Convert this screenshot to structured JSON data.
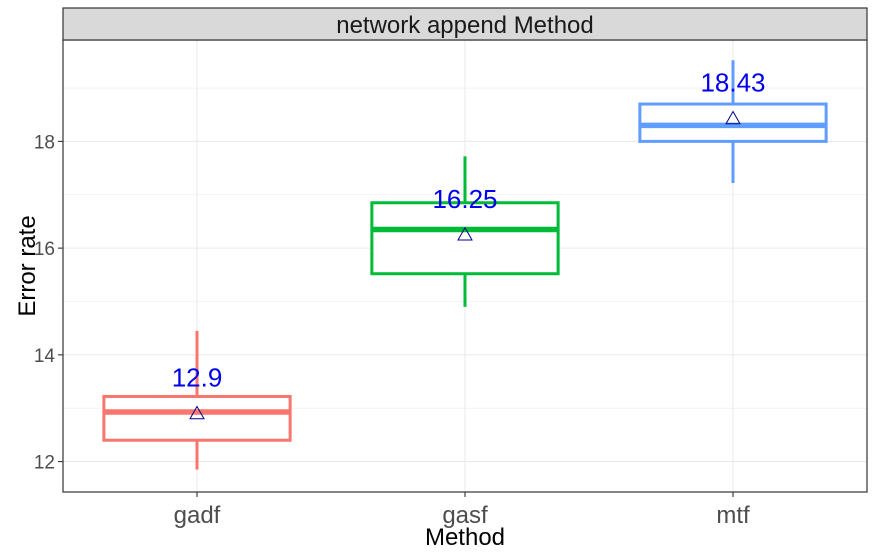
{
  "chart_data": {
    "type": "box",
    "facet_title": "network append Method",
    "xlabel": "Method",
    "ylabel": "Error rate",
    "categories": [
      "gadf",
      "gasf",
      "mtf"
    ],
    "boxes": [
      {
        "category": "gadf",
        "min": 11.85,
        "q1": 12.4,
        "median": 12.93,
        "q3": 13.22,
        "max": 14.45,
        "mean": 12.9,
        "mean_label": "12.9",
        "color": "#F8766D"
      },
      {
        "category": "gasf",
        "min": 14.9,
        "q1": 15.52,
        "median": 16.35,
        "q3": 16.85,
        "max": 17.72,
        "mean": 16.25,
        "mean_label": "16.25",
        "color": "#00BA38"
      },
      {
        "category": "mtf",
        "min": 17.22,
        "q1": 18.0,
        "median": 18.3,
        "q3": 18.7,
        "max": 19.52,
        "mean": 18.43,
        "mean_label": "18.43",
        "color": "#619CFF"
      }
    ],
    "yticks": [
      12,
      14,
      16,
      18
    ],
    "ylim": [
      11.43,
      19.9
    ],
    "grid": true,
    "legend": "none",
    "mean_marker": "triangle",
    "mean_label_color": "#0000EE"
  }
}
